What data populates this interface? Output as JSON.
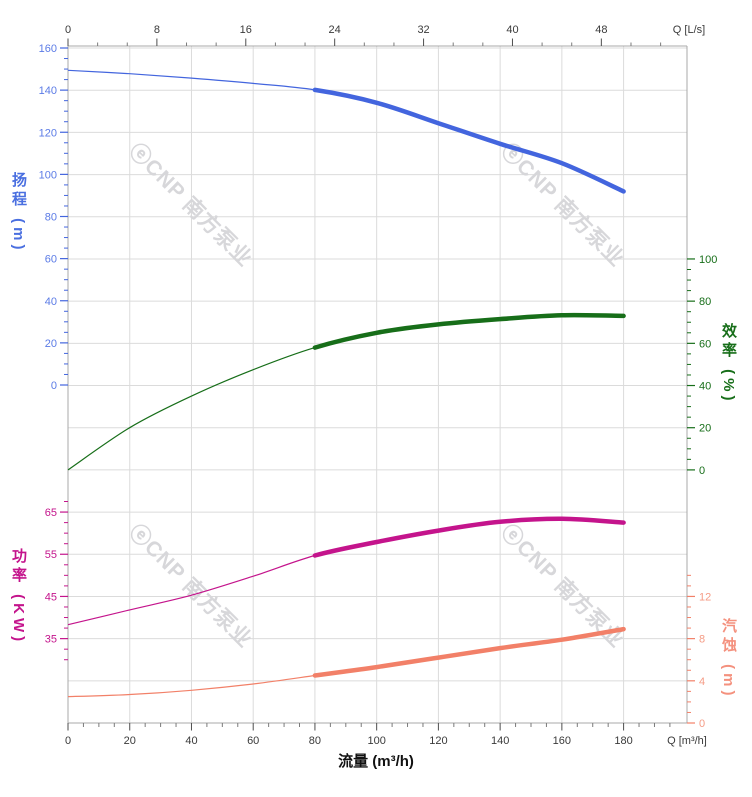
{
  "watermark": {
    "logo_glyph": "ⓔ",
    "text": "CNP 南方泵业",
    "color": "#d7d7da"
  },
  "axes": {
    "top": {
      "title": "Q [L/s]",
      "ticks": [
        "0",
        "8",
        "16",
        "24",
        "32",
        "40",
        "48"
      ]
    },
    "bottom": {
      "title": "Q [m³/h]",
      "axis_label": "流量 (m³/h)",
      "ticks": [
        "0",
        "20",
        "40",
        "60",
        "80",
        "100",
        "120",
        "140",
        "160",
        "180"
      ]
    },
    "head": {
      "label": "扬程 (m)",
      "ticks": [
        "0",
        "20",
        "40",
        "60",
        "80",
        "100",
        "120",
        "140",
        "160"
      ],
      "color": "#4365de",
      "tick_label_color": "#5b7be6"
    },
    "efficiency": {
      "label": "效率 (%)",
      "ticks": [
        "0",
        "20",
        "40",
        "60",
        "80",
        "100"
      ],
      "color": "#176e19",
      "tick_label_color": "#176e19"
    },
    "power": {
      "label": "功率 (KW)",
      "ticks": [
        "35",
        "45",
        "55",
        "65"
      ],
      "color": "#c4148c",
      "tick_label_color": "#c4148c"
    },
    "npsh": {
      "label": "汽蚀 (m)",
      "ticks": [
        "0",
        "4",
        "8",
        "12"
      ],
      "color": "#f28068",
      "tick_label_color": "#f59b85"
    }
  },
  "chart_data": {
    "type": "line",
    "title": "",
    "xlabel": "流量 (m³/h)",
    "x_secondary_label": "Q [L/s]",
    "x": [
      0,
      20,
      40,
      60,
      80,
      100,
      120,
      140,
      160,
      180
    ],
    "x_unit": "m³/h",
    "xlim": [
      0,
      200
    ],
    "grid": true,
    "highlight_range_x": [
      80,
      180
    ],
    "series": [
      {
        "name": "head",
        "label": "扬程",
        "unit": "m",
        "color": "#4365de",
        "axis_side": "left-top",
        "ylim": [
          0,
          160
        ],
        "values": [
          149.4,
          147.8,
          145.7,
          143.2,
          140.1,
          134.0,
          124.3,
          114.5,
          105.3,
          91.9
        ]
      },
      {
        "name": "efficiency",
        "label": "效率",
        "unit": "%",
        "color": "#176e19",
        "axis_side": "right-middle",
        "ylim": [
          0,
          100
        ],
        "values": [
          0,
          20,
          35,
          47.5,
          58,
          65,
          69,
          71.5,
          73.3,
          73
        ]
      },
      {
        "name": "power",
        "label": "功率",
        "unit": "KW",
        "color": "#c4148c",
        "axis_side": "left-bottom",
        "ylim": [
          35,
          65
        ],
        "values": [
          38.3,
          41.8,
          45.3,
          49.8,
          54.7,
          57.9,
          60.6,
          62.7,
          63.4,
          62.5
        ]
      },
      {
        "name": "npsh",
        "label": "汽蚀",
        "unit": "m",
        "color": "#f28068",
        "axis_side": "right-bottom",
        "ylim": [
          0,
          12
        ],
        "values": [
          2.5,
          2.7,
          3.1,
          3.7,
          4.5,
          5.3,
          6.2,
          7.1,
          7.9,
          8.9
        ]
      }
    ]
  }
}
